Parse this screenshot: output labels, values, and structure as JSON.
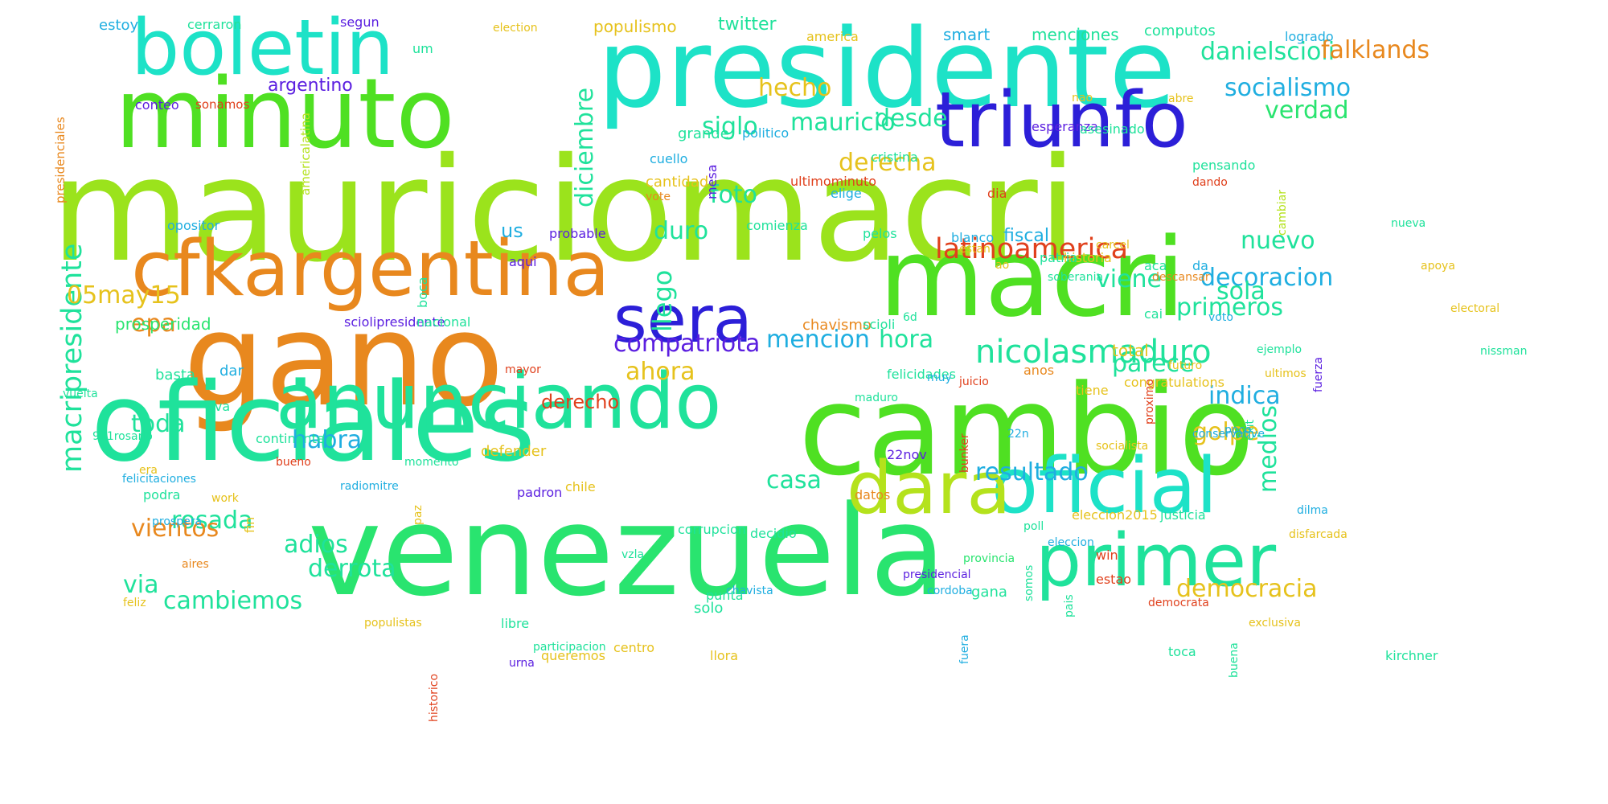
{
  "words": [
    {
      "text": "mauriciomacri",
      "color": "#9be31c"
    },
    {
      "text": "cambio",
      "color": "#4fe022"
    },
    {
      "text": "presidente",
      "color": "#1de2c7"
    },
    {
      "text": "gano",
      "color": "#e8881e"
    },
    {
      "text": "venezuela",
      "color": "#29e46f"
    },
    {
      "text": "oficiales",
      "color": "#1fe29b"
    },
    {
      "text": "minuto",
      "color": "#4fe022"
    },
    {
      "text": "macri",
      "color": "#4fe022"
    },
    {
      "text": "boletin",
      "color": "#1de2c7"
    },
    {
      "text": "triunfo",
      "color": "#2c1fd8"
    },
    {
      "text": "anunciando",
      "color": "#1fe29b"
    },
    {
      "text": "cfkargentina",
      "color": "#e8881e"
    },
    {
      "text": "oficial",
      "color": "#1de2c7"
    },
    {
      "text": "dara",
      "color": "#b4e21c"
    },
    {
      "text": "primer",
      "color": "#1fe29b"
    },
    {
      "text": "sera",
      "color": "#2c1fd8"
    },
    {
      "text": "nicolasmaduro",
      "color": "#1fe29b"
    },
    {
      "text": "latinoamerica",
      "color": "#e0401c"
    },
    {
      "text": "macripresidente",
      "color": "#1fe29b"
    },
    {
      "text": "compatriota",
      "color": "#5b1fe0"
    },
    {
      "text": "resultado",
      "color": "#1faee0"
    },
    {
      "text": "danielscioli",
      "color": "#1fe29b"
    },
    {
      "text": "falklands",
      "color": "#e8881e"
    },
    {
      "text": "socialismo",
      "color": "#1faee0"
    },
    {
      "text": "decoracion",
      "color": "#1faee0"
    },
    {
      "text": "democracia",
      "color": "#e6c21c"
    },
    {
      "text": "diciembre",
      "color": "#1fe29b"
    },
    {
      "text": "mauricio",
      "color": "#1fe29b"
    },
    {
      "text": "derecha",
      "color": "#e6c21c"
    },
    {
      "text": "cambiemos",
      "color": "#1fe29b"
    },
    {
      "text": "rosada",
      "color": "#1fe29b"
    },
    {
      "text": "05may15",
      "color": "#e6c21c"
    },
    {
      "text": "primeros",
      "color": "#1fe29b"
    },
    {
      "text": "parece",
      "color": "#1fe29b"
    },
    {
      "text": "indica",
      "color": "#1faee0"
    },
    {
      "text": "medios",
      "color": "#1fe29b"
    },
    {
      "text": "hecho",
      "color": "#e6c21c"
    },
    {
      "text": "desde",
      "color": "#1fe29b"
    },
    {
      "text": "verdad",
      "color": "#29e46f"
    },
    {
      "text": "siglo",
      "color": "#1fe29b"
    },
    {
      "text": "foto",
      "color": "#1fe29b"
    },
    {
      "text": "duro",
      "color": "#1fe29b"
    },
    {
      "text": "viene",
      "color": "#1fe29b"
    },
    {
      "text": "sola",
      "color": "#1fe29b"
    },
    {
      "text": "nuevo",
      "color": "#1fe29b"
    },
    {
      "text": "mencion",
      "color": "#1faee0"
    },
    {
      "text": "hora",
      "color": "#1fe29b"
    },
    {
      "text": "ahora",
      "color": "#e6c21c"
    },
    {
      "text": "golpe",
      "color": "#e6c21c"
    },
    {
      "text": "habra",
      "color": "#1faee0"
    },
    {
      "text": "toda",
      "color": "#1fe29b"
    },
    {
      "text": "epa",
      "color": "#e8881e"
    },
    {
      "text": "vientos",
      "color": "#e8881e"
    },
    {
      "text": "adios",
      "color": "#1fe29b"
    },
    {
      "text": "derrota",
      "color": "#1fe29b"
    },
    {
      "text": "via",
      "color": "#1fe29b"
    },
    {
      "text": "casa",
      "color": "#1fe29b"
    },
    {
      "text": "argentino",
      "color": "#5b1fe0"
    },
    {
      "text": "twitter",
      "color": "#1fe29b"
    },
    {
      "text": "populismo",
      "color": "#e6c21c"
    },
    {
      "text": "menciones",
      "color": "#1fe29b"
    },
    {
      "text": "smart",
      "color": "#1faee0"
    },
    {
      "text": "computos",
      "color": "#1fe29b"
    },
    {
      "text": "logrado",
      "color": "#1faee0"
    },
    {
      "text": "estoy",
      "color": "#1faee0"
    },
    {
      "text": "cerraron",
      "color": "#1fe29b"
    },
    {
      "text": "segun",
      "color": "#5b1fe0"
    },
    {
      "text": "election",
      "color": "#e6c21c"
    },
    {
      "text": "america",
      "color": "#e6c21c"
    },
    {
      "text": "um",
      "color": "#1fe29b"
    },
    {
      "text": "presidenciales",
      "color": "#e8881e"
    },
    {
      "text": "conteo",
      "color": "#5b1fe0"
    },
    {
      "text": "sonamos",
      "color": "#e0401c"
    },
    {
      "text": "grande",
      "color": "#1fe29b"
    },
    {
      "text": "politico",
      "color": "#1faee0"
    },
    {
      "text": "esperanza",
      "color": "#5b1fe0"
    },
    {
      "text": "abre",
      "color": "#e6c21c"
    },
    {
      "text": "asesinado",
      "color": "#1fe29b"
    },
    {
      "text": "nao",
      "color": "#e6c21c"
    },
    {
      "text": "mesa",
      "color": "#5b1fe0"
    },
    {
      "text": "americalatina",
      "color": "#b4e21c"
    },
    {
      "text": "cuello",
      "color": "#1faee0"
    },
    {
      "text": "cristina",
      "color": "#1fe29b"
    },
    {
      "text": "cantidad",
      "color": "#e6c21c"
    },
    {
      "text": "ultimominuto",
      "color": "#e0401c"
    },
    {
      "text": "elige",
      "color": "#1faee0"
    },
    {
      "text": "dia",
      "color": "#e0401c"
    },
    {
      "text": "dando",
      "color": "#e0401c"
    },
    {
      "text": "pensando",
      "color": "#1fe29b"
    },
    {
      "text": "cambiar",
      "color": "#b4e21c"
    },
    {
      "text": "vote",
      "color": "#e8881e"
    },
    {
      "text": "opositor",
      "color": "#1faee0"
    },
    {
      "text": "us",
      "color": "#1faee0"
    },
    {
      "text": "probable",
      "color": "#5b1fe0"
    },
    {
      "text": "boca",
      "color": "#1fe29b"
    },
    {
      "text": "comienza",
      "color": "#1fe29b"
    },
    {
      "text": "pelos",
      "color": "#1fe29b"
    },
    {
      "text": "blanco",
      "color": "#1faee0"
    },
    {
      "text": "fiscal",
      "color": "#1faee0"
    },
    {
      "text": "historia",
      "color": "#e6c21c"
    },
    {
      "text": "carcel",
      "color": "#e6c21c"
    },
    {
      "text": "llego",
      "color": "#1fe29b"
    },
    {
      "text": "estan",
      "color": "#e6c21c"
    },
    {
      "text": "patria",
      "color": "#1fe29b"
    },
    {
      "text": "aca",
      "color": "#1fe29b"
    },
    {
      "text": "da",
      "color": "#1faee0"
    },
    {
      "text": "aqui",
      "color": "#5b1fe0"
    },
    {
      "text": "ao",
      "color": "#e6c21c"
    },
    {
      "text": "soberania",
      "color": "#1fe29b"
    },
    {
      "text": "descansar",
      "color": "#e8881e"
    },
    {
      "text": "prosperidad",
      "color": "#29e46f"
    },
    {
      "text": "sciolipresidente",
      "color": "#5b1fe0"
    },
    {
      "text": "nacional",
      "color": "#1fe29b"
    },
    {
      "text": "cai",
      "color": "#1fe29b"
    },
    {
      "text": "voto",
      "color": "#1faee0"
    },
    {
      "text": "total",
      "color": "#e6c21c"
    },
    {
      "text": "chavismo",
      "color": "#e8881e"
    },
    {
      "text": "scioli",
      "color": "#1fe29b"
    },
    {
      "text": "6d",
      "color": "#1fe29b"
    },
    {
      "text": "fuerza",
      "color": "#5b1fe0"
    },
    {
      "text": "basta",
      "color": "#1fe29b"
    },
    {
      "text": "dar",
      "color": "#1faee0"
    },
    {
      "text": "mayor",
      "color": "#e0401c"
    },
    {
      "text": "anos",
      "color": "#e8881e"
    },
    {
      "text": "tiene",
      "color": "#e6c21c"
    },
    {
      "text": "congratulations",
      "color": "#e6c21c"
    },
    {
      "text": "proximo",
      "color": "#e0401c"
    },
    {
      "text": "felicidades",
      "color": "#1fe29b"
    },
    {
      "text": "muy",
      "color": "#1faee0"
    },
    {
      "text": "ejemplo",
      "color": "#1fe29b"
    },
    {
      "text": "futuro",
      "color": "#e6c21c"
    },
    {
      "text": "exit",
      "color": "#1fe29b"
    },
    {
      "text": "juicio",
      "color": "#e0401c"
    },
    {
      "text": "ultimos",
      "color": "#e6c21c"
    },
    {
      "text": "maduro",
      "color": "#1fe29b"
    },
    {
      "text": "bunker",
      "color": "#e0401c"
    },
    {
      "text": "derecho",
      "color": "#e0401c"
    },
    {
      "text": "viva",
      "color": "#1fe29b"
    },
    {
      "text": "continente",
      "color": "#1fe29b"
    },
    {
      "text": "socialista",
      "color": "#e6c21c"
    },
    {
      "text": "poco",
      "color": "#1faee0"
    },
    {
      "text": "fin",
      "color": "#e6c21c"
    },
    {
      "text": "bueno",
      "color": "#e0401c"
    },
    {
      "text": "22n",
      "color": "#1faee0"
    },
    {
      "text": "conservative",
      "color": "#1faee0"
    },
    {
      "text": "defender",
      "color": "#e6c21c"
    },
    {
      "text": "paz",
      "color": "#e6c21c"
    },
    {
      "text": "momento",
      "color": "#1fe29b"
    },
    {
      "text": "radiomitre",
      "color": "#1faee0"
    },
    {
      "text": "22nov",
      "color": "#5b1fe0"
    },
    {
      "text": "podra",
      "color": "#1fe29b"
    },
    {
      "text": "chile",
      "color": "#e6c21c"
    },
    {
      "text": "era",
      "color": "#e6c21c"
    },
    {
      "text": "work",
      "color": "#e6c21c"
    },
    {
      "text": "datos",
      "color": "#e8881e"
    },
    {
      "text": "eleccion2015",
      "color": "#e6c21c"
    },
    {
      "text": "dilma",
      "color": "#1faee0"
    },
    {
      "text": "win",
      "color": "#e0401c"
    },
    {
      "text": "padron",
      "color": "#5b1fe0"
    },
    {
      "text": "corrupcion",
      "color": "#1fe29b"
    },
    {
      "text": "decidio",
      "color": "#1fe29b"
    },
    {
      "text": "justicia",
      "color": "#1fe29b"
    },
    {
      "text": "poll",
      "color": "#1fe29b"
    },
    {
      "text": "vzla",
      "color": "#1fe29b"
    },
    {
      "text": "pais",
      "color": "#1fe29b"
    },
    {
      "text": "solo",
      "color": "#1fe29b"
    },
    {
      "text": "provincia",
      "color": "#29e46f"
    },
    {
      "text": "chavista",
      "color": "#1faee0"
    },
    {
      "text": "fuera",
      "color": "#1faee0"
    },
    {
      "text": "estao",
      "color": "#e0401c"
    },
    {
      "text": "disfarcada",
      "color": "#e6c21c"
    },
    {
      "text": "punta",
      "color": "#1fe29b"
    },
    {
      "text": "gana",
      "color": "#1fe29b"
    },
    {
      "text": "presidencial",
      "color": "#5b1fe0"
    },
    {
      "text": "cordoba",
      "color": "#1faee0"
    },
    {
      "text": "somos",
      "color": "#1fe29b"
    },
    {
      "text": "democrata",
      "color": "#e0401c"
    },
    {
      "text": "eleccion",
      "color": "#1faee0"
    },
    {
      "text": "feliz",
      "color": "#e6c21c"
    },
    {
      "text": "historico",
      "color": "#e0401c"
    },
    {
      "text": "urna",
      "color": "#5b1fe0"
    },
    {
      "text": "buena",
      "color": "#1fe29b"
    },
    {
      "text": "exclusiva",
      "color": "#e6c21c"
    },
    {
      "text": "populistas",
      "color": "#e6c21c"
    },
    {
      "text": "libre",
      "color": "#1fe29b"
    },
    {
      "text": "queremos",
      "color": "#e6c21c"
    },
    {
      "text": "participacion",
      "color": "#1fe29b"
    },
    {
      "text": "centro",
      "color": "#e6c21c"
    },
    {
      "text": "llora",
      "color": "#e6c21c"
    },
    {
      "text": "toca",
      "color": "#1fe29b"
    },
    {
      "text": "kirchner",
      "color": "#1fe29b"
    },
    {
      "text": "nueva",
      "color": "#1fe29b"
    },
    {
      "text": "apoya",
      "color": "#e6c21c"
    },
    {
      "text": "electoral",
      "color": "#e6c21c"
    },
    {
      "text": "nissman",
      "color": "#1fe29b"
    },
    {
      "text": "vuelta",
      "color": "#1fe29b"
    },
    {
      "text": "911rosario",
      "color": "#1fe29b"
    },
    {
      "text": "felicitaciones",
      "color": "#1faee0"
    },
    {
      "text": "prospera",
      "color": "#1faee0"
    },
    {
      "text": "aires",
      "color": "#e8881e"
    }
  ]
}
